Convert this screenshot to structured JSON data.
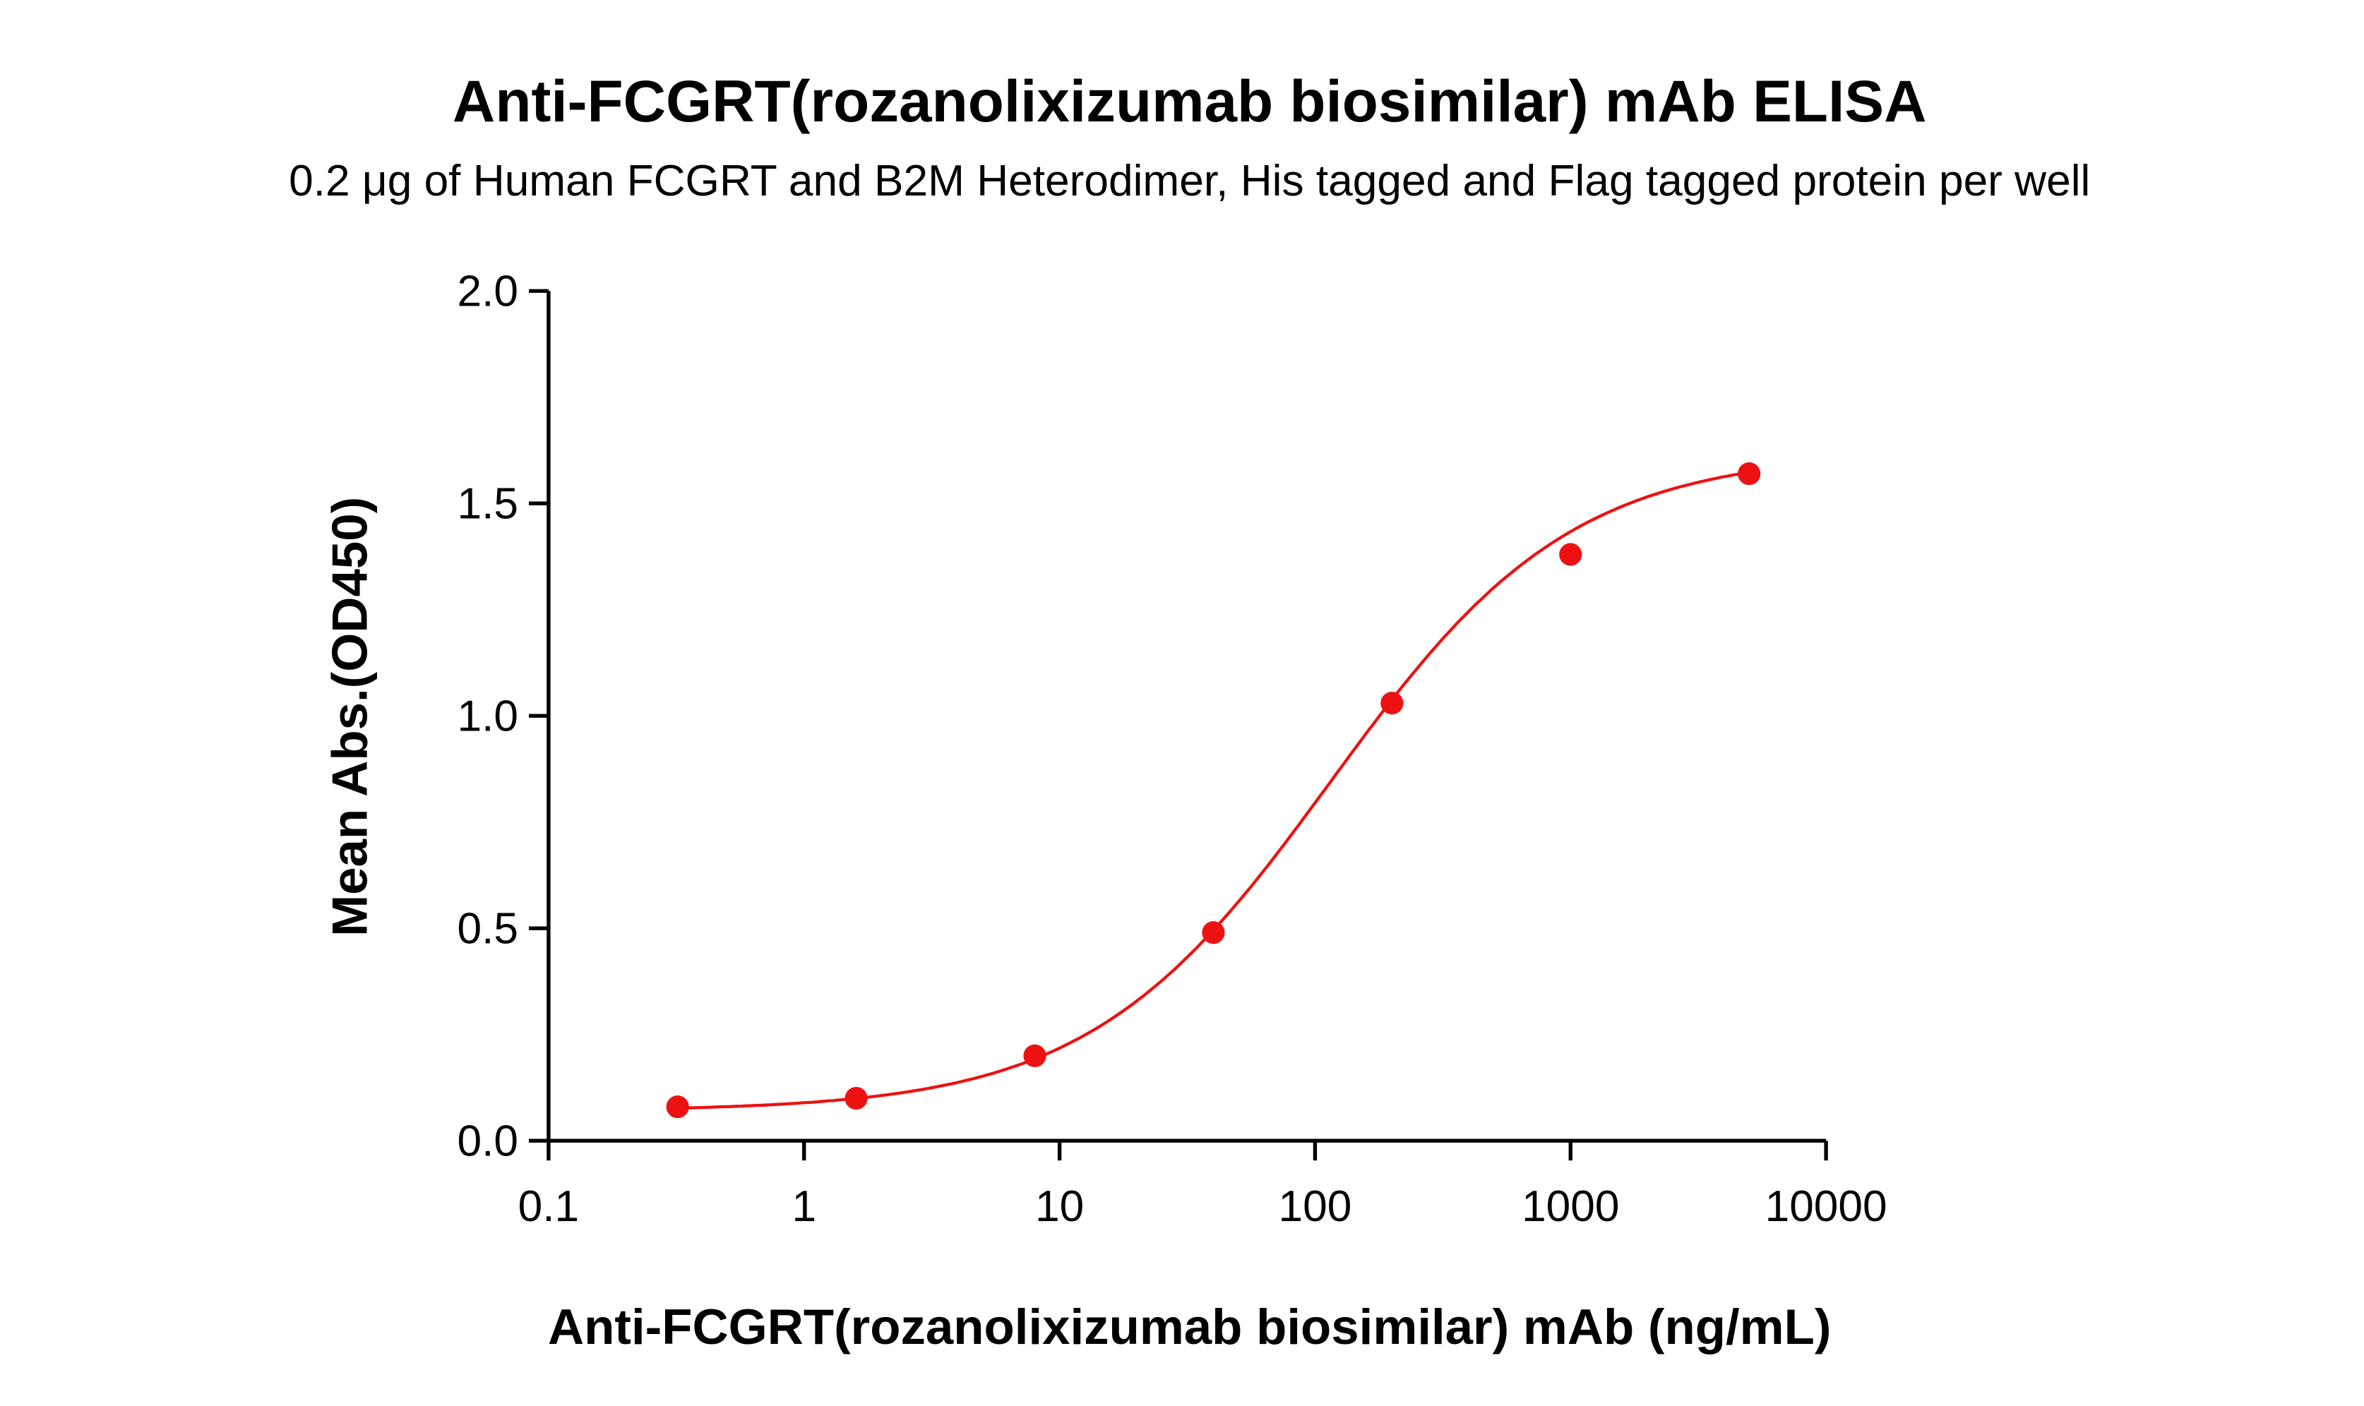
{
  "chart_data": {
    "type": "scatter",
    "title": "Anti-FCGRT(rozanolixizumab biosimilar) mAb ELISA",
    "subtitle": "0.2 μg of Human FCGRT and B2M Heterodimer, His tagged and Flag tagged protein per well",
    "xlabel": "Anti-FCGRT(rozanolixizumab biosimilar) mAb (ng/mL)",
    "ylabel": "Mean Abs.(OD450)",
    "xscale": "log",
    "xlim": [
      0.1,
      10000
    ],
    "ylim": [
      0,
      2.0
    ],
    "xticks": [
      "0.1",
      "1",
      "10",
      "100",
      "1000",
      "10000"
    ],
    "yticks": [
      "0.0",
      "0.5",
      "1.0",
      "1.5",
      "2.0"
    ],
    "grid": false,
    "color": "#ee1111",
    "fit_curve": "4PL sigmoidal fit",
    "x": [
      0.32,
      1.6,
      8,
      40,
      200,
      1000,
      5000
    ],
    "y": [
      0.08,
      0.1,
      0.2,
      0.49,
      1.03,
      1.38,
      1.57
    ]
  }
}
